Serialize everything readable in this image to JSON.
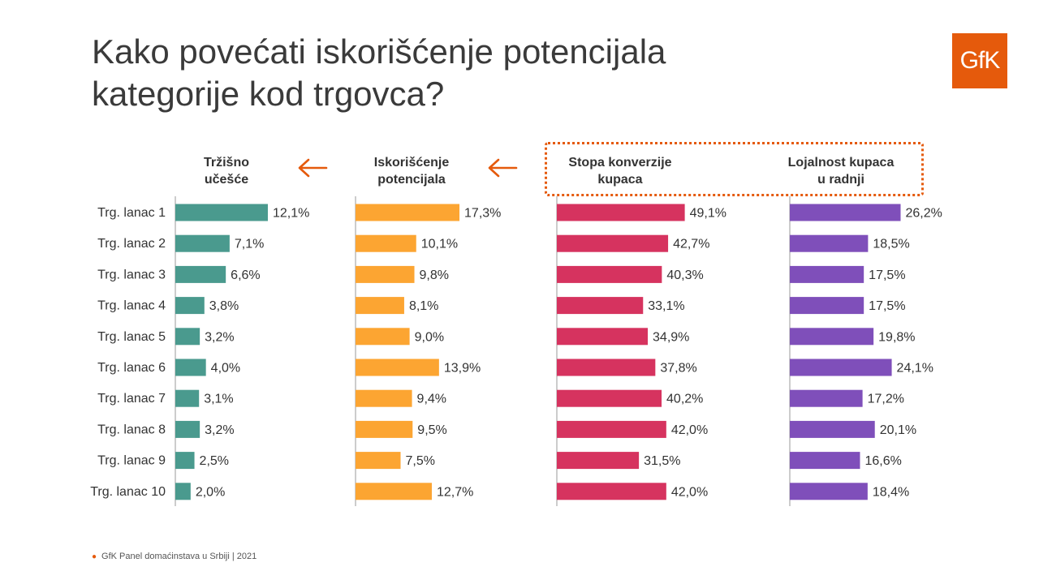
{
  "title": "Kako povećati iskorišćenje potencijala kategorije kod trgovca?",
  "logo_text": "GfK",
  "footer": "GfK Panel domaćinstava u Srbiji | 2021",
  "colors": {
    "teal": "#4a9a8e",
    "orange": "#fca532",
    "crimson": "#d6335f",
    "purple": "#7f4fba",
    "accent": "#e55a0c"
  },
  "chart_data": {
    "type": "bar",
    "orientation": "horizontal",
    "categories": [
      "Trg. lanac 1",
      "Trg. lanac 2",
      "Trg. lanac 3",
      "Trg. lanac 4",
      "Trg. lanac 5",
      "Trg. lanac 6",
      "Trg. lanac 7",
      "Trg. lanac 8",
      "Trg. lanac 9",
      "Trg. lanac 10"
    ],
    "series": [
      {
        "name": "Tržišno učešće",
        "header_lines": [
          "Tržišno",
          "učešće"
        ],
        "color": "#4a9a8e",
        "values": [
          12.1,
          7.1,
          6.6,
          3.8,
          3.2,
          4.0,
          3.1,
          3.2,
          2.5,
          2.0
        ],
        "labels": [
          "12,1%",
          "7,1%",
          "6,6%",
          "3,8%",
          "3,2%",
          "4,0%",
          "3,1%",
          "3,2%",
          "2,5%",
          "2,0%"
        ]
      },
      {
        "name": "Iskorišćenje potencijala",
        "header_lines": [
          "Iskorišćenje",
          "potencijala"
        ],
        "color": "#fca532",
        "values": [
          17.3,
          10.1,
          9.8,
          8.1,
          9.0,
          13.9,
          9.4,
          9.5,
          7.5,
          12.7
        ],
        "labels": [
          "17,3%",
          "10,1%",
          "9,8%",
          "8,1%",
          "9,0%",
          "13,9%",
          "9,4%",
          "9,5%",
          "7,5%",
          "12,7%"
        ]
      },
      {
        "name": "Stopa konverzije kupaca",
        "header_lines": [
          "Stopa konverzije",
          "kupaca"
        ],
        "color": "#d6335f",
        "values": [
          49.1,
          42.7,
          40.3,
          33.1,
          34.9,
          37.8,
          40.2,
          42.0,
          31.5,
          42.0
        ],
        "labels": [
          "49,1%",
          "42,7%",
          "40,3%",
          "33,1%",
          "34,9%",
          "37,8%",
          "40,2%",
          "42,0%",
          "31,5%",
          "42,0%"
        ]
      },
      {
        "name": "Lojalnost kupaca u radnji",
        "header_lines": [
          "Lojalnost kupaca",
          "u radnji"
        ],
        "color": "#7f4fba",
        "values": [
          26.2,
          18.5,
          17.5,
          17.5,
          19.8,
          24.1,
          17.2,
          20.1,
          16.6,
          18.4
        ],
        "labels": [
          "26,2%",
          "18,5%",
          "17,5%",
          "17,5%",
          "19,8%",
          "24,1%",
          "17,2%",
          "20,1%",
          "16,6%",
          "18,4%"
        ]
      }
    ],
    "legend": "none",
    "grid": false
  }
}
